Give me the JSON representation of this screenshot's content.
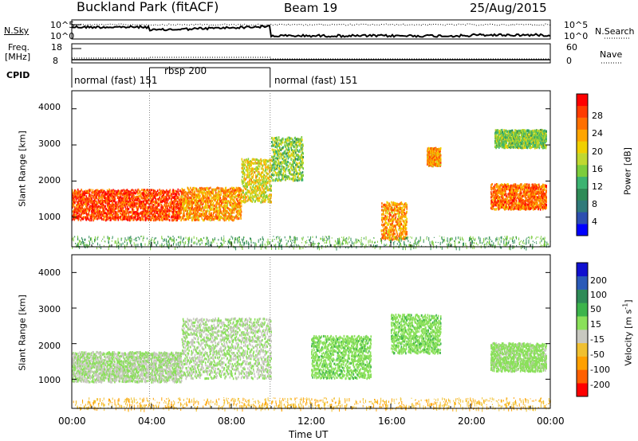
{
  "header": {
    "station": "Buckland Park (fitACF)",
    "beam": "Beam 19",
    "date": "25/Aug/2015"
  },
  "noise_panel": {
    "left_label": "N.Sky",
    "right_label": "N.Search",
    "ticks_left": [
      "10^5",
      "10^0"
    ],
    "ticks_right": [
      "10^5",
      "10^0"
    ]
  },
  "freq_panel": {
    "label_line1": "Freq.",
    "label_line2": "[MHz]",
    "right_label": "Nave",
    "ticks_left": [
      "18",
      "8"
    ],
    "ticks_right": [
      "60",
      "0"
    ]
  },
  "cpid": {
    "label": "CPID",
    "segments": [
      {
        "name": "normal (fast) 151",
        "start_hour": 0,
        "end_hour": 3.9
      },
      {
        "name": "rbsp 200",
        "start_hour": 3.9,
        "end_hour": 9.95
      },
      {
        "name": "normal (fast) 151",
        "start_hour": 9.95,
        "end_hour": 24
      }
    ]
  },
  "x_axis": {
    "label": "Time UT",
    "ticks": [
      "00:00",
      "04:00",
      "08:00",
      "12:00",
      "16:00",
      "20:00",
      "00:00"
    ]
  },
  "power_panel": {
    "ylabel": "Slant Range [km]",
    "yticks": [
      "4000",
      "3000",
      "2000",
      "1000"
    ],
    "colorbar_label": "Power [dB]",
    "colorbar_ticks": [
      "28",
      "24",
      "20",
      "16",
      "12",
      "8",
      "4"
    ],
    "colors": [
      "#0000ff",
      "#2d4fb0",
      "#2f7a7a",
      "#2e8b57",
      "#3cb371",
      "#7ccd3c",
      "#c0d830",
      "#f0d000",
      "#ffa500",
      "#ff7000",
      "#ff3c00",
      "#ff0000"
    ]
  },
  "velocity_panel": {
    "ylabel": "Slant Range [km]",
    "yticks": [
      "4000",
      "3000",
      "2000",
      "1000"
    ],
    "colorbar_label": "Velocity [m s",
    "colorbar_label_sup": "-1",
    "colorbar_label_end": "]",
    "colorbar_ticks": [
      "200",
      "100",
      "50",
      "15",
      "-15",
      "-50",
      "-100",
      "-200"
    ],
    "colors": [
      "#1010d0",
      "#2a5ab8",
      "#2e8b57",
      "#3cb44b",
      "#8ae05a",
      "#c8c8c0",
      "#f0c030",
      "#ffa000",
      "#ff6000",
      "#ff0000"
    ]
  },
  "chart_data": {
    "type": "heatmap",
    "x_range_hours": [
      0,
      24
    ],
    "y_range_km": [
      180,
      4500
    ],
    "panels": [
      {
        "name": "power",
        "value_range_db": [
          0,
          30
        ],
        "regions": [
          {
            "t0": 0,
            "t1": 5.5,
            "r0": 900,
            "r1": 1750,
            "value": 26
          },
          {
            "t0": 5.5,
            "t1": 8.5,
            "r0": 900,
            "r1": 1800,
            "value": 22
          },
          {
            "t0": 8.5,
            "t1": 10.0,
            "r0": 1400,
            "r1": 2600,
            "value": 18
          },
          {
            "t0": 10.0,
            "t1": 11.6,
            "r0": 2000,
            "r1": 3200,
            "value": 14
          },
          {
            "t0": 15.5,
            "t1": 16.8,
            "r0": 350,
            "r1": 1400,
            "value": 22
          },
          {
            "t0": 17.8,
            "t1": 18.5,
            "r0": 2400,
            "r1": 2900,
            "value": 22
          },
          {
            "t0": 21.0,
            "t1": 23.8,
            "r0": 1200,
            "r1": 1900,
            "value": 24
          },
          {
            "t0": 21.2,
            "t1": 23.8,
            "r0": 2900,
            "r1": 3400,
            "value": 14
          }
        ]
      },
      {
        "name": "velocity",
        "value_range_ms": [
          -250,
          250
        ],
        "regions": [
          {
            "t0": 0,
            "t1": 5.5,
            "r0": 900,
            "r1": 1750,
            "value": 0
          },
          {
            "t0": 5.5,
            "t1": 10.0,
            "r0": 1000,
            "r1": 2700,
            "value": 0
          },
          {
            "t0": 12.0,
            "t1": 15.0,
            "r0": 1000,
            "r1": 2200,
            "value": 30
          },
          {
            "t0": 16.0,
            "t1": 18.5,
            "r0": 1700,
            "r1": 2800,
            "value": 30
          },
          {
            "t0": 21.0,
            "t1": 23.8,
            "r0": 1200,
            "r1": 2000,
            "value": 20
          }
        ]
      }
    ]
  }
}
